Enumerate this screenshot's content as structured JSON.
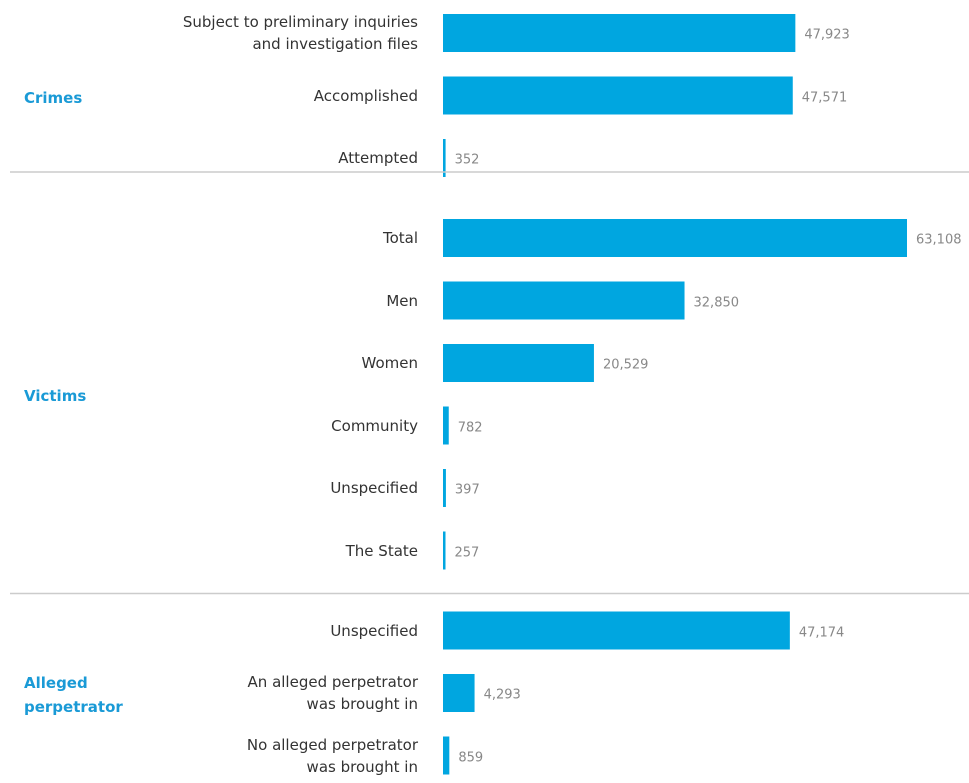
{
  "chart_data": {
    "type": "bar",
    "color": "#00a6e0",
    "groups": [
      {
        "name": "Crimes",
        "categories": [
          "Subject to preliminary inquiries\nand investigation files",
          "Accomplished",
          "Attempted"
        ],
        "values": [
          47923,
          47571,
          352
        ],
        "value_labels": [
          "47,923",
          "47,571",
          "352"
        ]
      },
      {
        "name": "Victims",
        "categories": [
          "Total",
          "Men",
          "Women",
          "Community",
          "Unspecified",
          "The State"
        ],
        "values": [
          63108,
          32850,
          20529,
          782,
          397,
          257
        ],
        "value_labels": [
          "63,108",
          "32,850",
          "20,529",
          "782",
          "397",
          "257"
        ]
      },
      {
        "name": "Alleged\nperpetrator",
        "categories": [
          "Unspecified",
          "An alleged perpetrator\nwas brought in",
          "No alleged perpetrator\nwas brought in"
        ],
        "values": [
          47174,
          4293,
          859
        ],
        "value_labels": [
          "47,174",
          "4,293",
          "859"
        ]
      }
    ]
  }
}
